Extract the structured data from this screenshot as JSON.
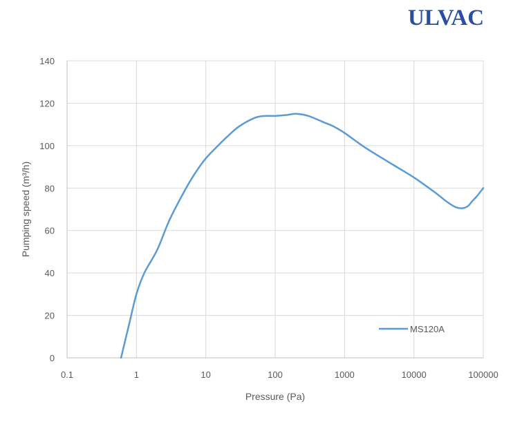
{
  "logo": {
    "text": "ULVAC"
  },
  "chart_data": {
    "type": "line",
    "title": "",
    "xlabel": "Pressure (Pa)",
    "ylabel": "Pumping speed (m³/h)",
    "xscale": "log",
    "xlim": [
      0.1,
      100000
    ],
    "ylim": [
      0,
      140
    ],
    "x_ticks": [
      0.1,
      1,
      10,
      100,
      1000,
      10000,
      100000
    ],
    "x_tick_labels": [
      "0.1",
      "1",
      "10",
      "100",
      "1000",
      "10000",
      "100000"
    ],
    "y_ticks": [
      0,
      20,
      40,
      60,
      80,
      100,
      120,
      140
    ],
    "y_tick_labels": [
      "0",
      "20",
      "40",
      "60",
      "80",
      "100",
      "120",
      "140"
    ],
    "grid": true,
    "legend": "bottom-right",
    "series": [
      {
        "name": "MS120A",
        "color": "#5b9bd5",
        "x": [
          0.6,
          0.8,
          1,
          1.3,
          2,
          3,
          5,
          7,
          10,
          15,
          20,
          30,
          50,
          70,
          100,
          150,
          200,
          300,
          500,
          700,
          1000,
          2000,
          5000,
          10000,
          20000,
          30000,
          40000,
          50000,
          60000,
          70000,
          80000,
          100000
        ],
        "y": [
          0,
          17,
          30,
          40,
          51,
          65,
          79,
          87,
          94,
          100,
          104,
          109,
          113,
          114,
          114,
          114.5,
          115,
          114,
          111,
          109,
          106,
          99,
          91,
          85,
          78,
          73.5,
          71,
          70.5,
          71.5,
          74,
          76,
          80
        ]
      }
    ]
  }
}
